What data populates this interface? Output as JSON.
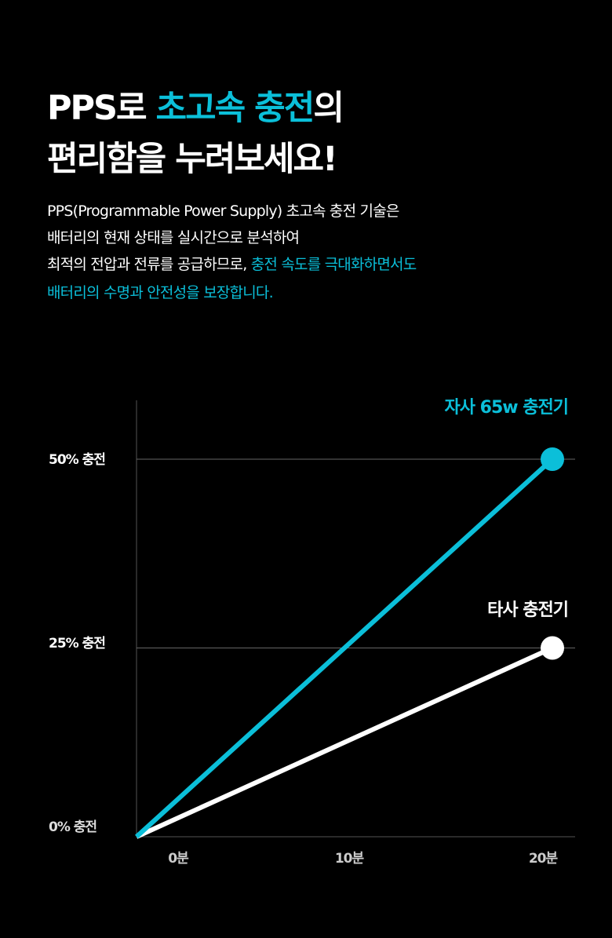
{
  "headline": {
    "line1_a": "PPS로 ",
    "line1_b": "초고속 충전",
    "line1_c": "의",
    "line2": "편리함을 누려보세요!"
  },
  "body": {
    "line1": "PPS(Programmable Power Supply) 초고속 충전 기술은",
    "line2": "배터리의 현재 상태를 실시간으로 분석하여",
    "line3_a": "최적의 전압과 전류를 공급하므로, ",
    "line3_b": "충전 속도를 극대화하면서도",
    "line4": "배터리의 수명과 안전성을 보장합니다."
  },
  "colors": {
    "accent": "#0bbfd9",
    "other": "#ffffff",
    "background": "#000000"
  },
  "chart_data": {
    "type": "line",
    "x": [
      0,
      20
    ],
    "x_ticks": [
      "0분",
      "10분",
      "20분"
    ],
    "y_ticks": [
      "0% 충전",
      "25% 충전",
      "50% 충전"
    ],
    "ylim": [
      0,
      50
    ],
    "grid": "horizontal",
    "series": [
      {
        "name": "자사 65w 충전기",
        "values": [
          0,
          50
        ],
        "color": "#0bbfd9"
      },
      {
        "name": "타사 충전기",
        "values": [
          0,
          25
        ],
        "color": "#ffffff"
      }
    ]
  }
}
